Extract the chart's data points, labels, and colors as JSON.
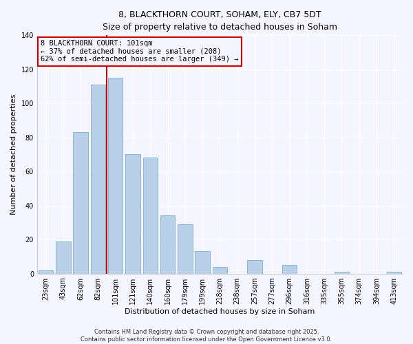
{
  "title": "8, BLACKTHORN COURT, SOHAM, ELY, CB7 5DT",
  "subtitle": "Size of property relative to detached houses in Soham",
  "xlabel": "Distribution of detached houses by size in Soham",
  "ylabel": "Number of detached properties",
  "bar_labels": [
    "23sqm",
    "43sqm",
    "62sqm",
    "82sqm",
    "101sqm",
    "121sqm",
    "140sqm",
    "160sqm",
    "179sqm",
    "199sqm",
    "218sqm",
    "238sqm",
    "257sqm",
    "277sqm",
    "296sqm",
    "316sqm",
    "335sqm",
    "355sqm",
    "374sqm",
    "394sqm",
    "413sqm"
  ],
  "bar_values": [
    2,
    19,
    83,
    111,
    115,
    70,
    68,
    34,
    29,
    13,
    4,
    0,
    8,
    0,
    5,
    0,
    0,
    1,
    0,
    0,
    1
  ],
  "bar_color": "#b8d0e8",
  "bar_edgecolor": "#8ab4d4",
  "vline_color": "#cc0000",
  "annotation_line1": "8 BLACKTHORN COURT: 101sqm",
  "annotation_line2": "← 37% of detached houses are smaller (208)",
  "annotation_line3": "62% of semi-detached houses are larger (349) →",
  "annotation_box_edgecolor": "#cc0000",
  "ylim": [
    0,
    140
  ],
  "yticks": [
    0,
    20,
    40,
    60,
    80,
    100,
    120,
    140
  ],
  "footer1": "Contains HM Land Registry data © Crown copyright and database right 2025.",
  "footer2": "Contains public sector information licensed under the Open Government Licence v3.0.",
  "background_color": "#f5f5ff",
  "grid_color": "#ffffff",
  "title_fontsize": 9,
  "subtitle_fontsize": 8,
  "axis_label_fontsize": 8,
  "tick_fontsize": 7,
  "annotation_fontsize": 7.5,
  "footer_fontsize": 6
}
